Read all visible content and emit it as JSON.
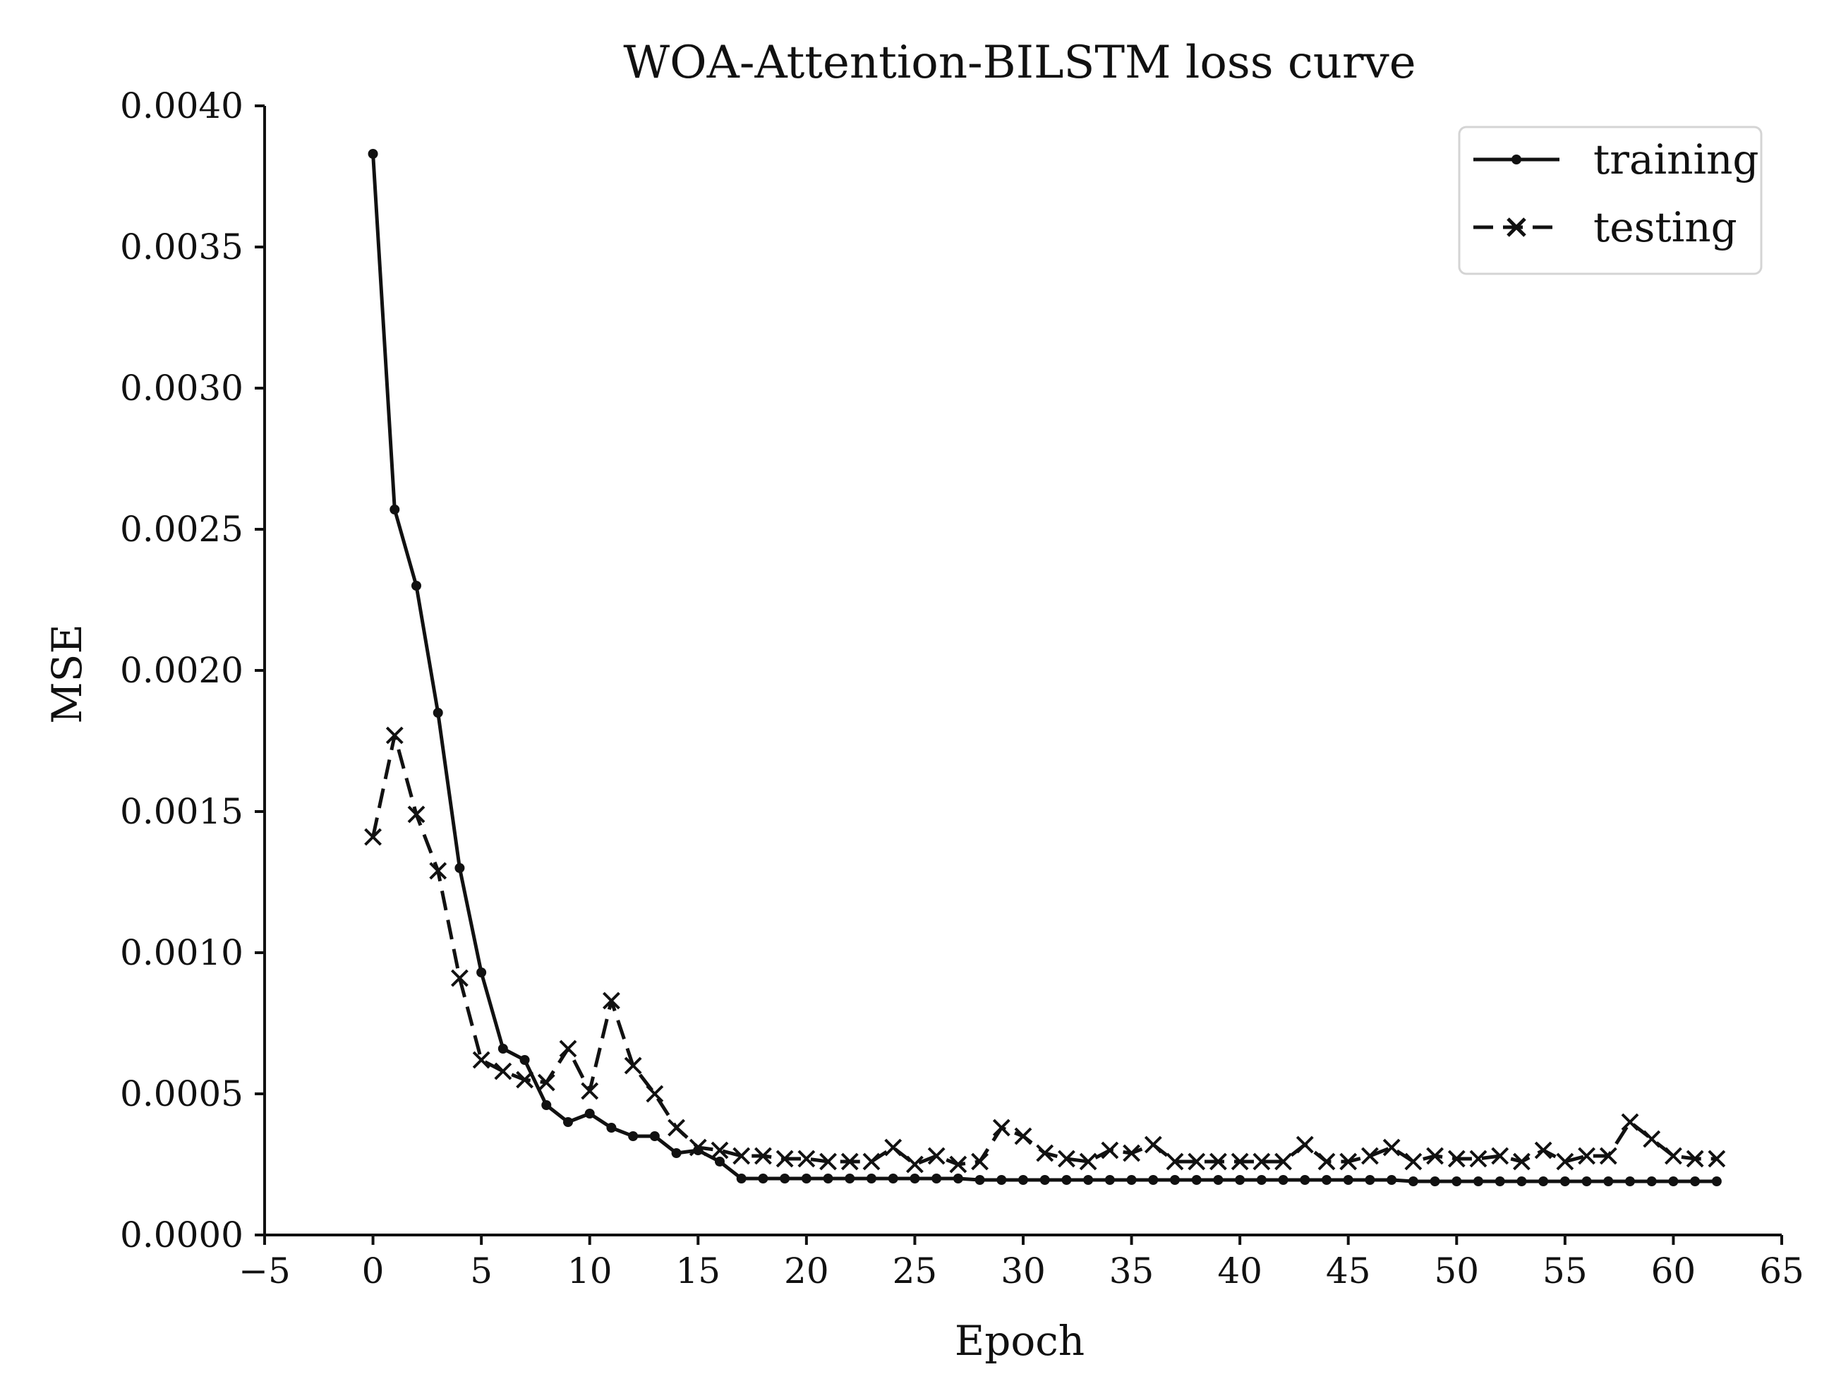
{
  "chart_data": {
    "type": "line",
    "title": "WOA-Attention-BILSTM loss curve",
    "xlabel": "Epoch",
    "ylabel": "MSE",
    "xlim": [
      -5,
      65
    ],
    "ylim": [
      0,
      0.004
    ],
    "x_ticks": [
      -5,
      0,
      5,
      10,
      15,
      20,
      25,
      30,
      35,
      40,
      45,
      50,
      55,
      60,
      65
    ],
    "x_tick_labels": [
      "−5",
      "0",
      "5",
      "10",
      "15",
      "20",
      "25",
      "30",
      "35",
      "40",
      "45",
      "50",
      "55",
      "60",
      "65"
    ],
    "y_ticks": [
      0,
      0.0005,
      0.001,
      0.0015,
      0.002,
      0.0025,
      0.003,
      0.0035,
      0.004
    ],
    "y_tick_labels": [
      "0.0000",
      "0.0005",
      "0.0010",
      "0.0015",
      "0.0020",
      "0.0025",
      "0.0030",
      "0.0035",
      "0.0040"
    ],
    "grid": false,
    "legend_position": "top-right",
    "series": [
      {
        "name": "training",
        "line_style": "solid",
        "marker": "dot",
        "color": "#111111",
        "values": [
          0.00383,
          0.00257,
          0.0023,
          0.00185,
          0.0013,
          0.00093,
          0.00066,
          0.00062,
          0.00046,
          0.0004,
          0.00043,
          0.00038,
          0.00035,
          0.00035,
          0.00029,
          0.0003,
          0.00026,
          0.0002,
          0.0002,
          0.0002,
          0.0002,
          0.0002,
          0.0002,
          0.0002,
          0.0002,
          0.0002,
          0.0002,
          0.0002,
          0.000195,
          0.000195,
          0.000195,
          0.000195,
          0.000195,
          0.000195,
          0.000195,
          0.000195,
          0.000195,
          0.000195,
          0.000195,
          0.000195,
          0.000195,
          0.000195,
          0.000195,
          0.000195,
          0.000195,
          0.000195,
          0.000195,
          0.000195,
          0.00019,
          0.00019,
          0.00019,
          0.00019,
          0.00019,
          0.00019,
          0.00019,
          0.00019,
          0.00019,
          0.00019,
          0.00019,
          0.00019,
          0.00019,
          0.00019,
          0.00019
        ]
      },
      {
        "name": "testing",
        "line_style": "dashed",
        "marker": "x",
        "color": "#111111",
        "values": [
          0.00141,
          0.00177,
          0.00149,
          0.00129,
          0.00091,
          0.00062,
          0.00058,
          0.00055,
          0.00054,
          0.00066,
          0.00051,
          0.00083,
          0.0006,
          0.0005,
          0.00038,
          0.00031,
          0.0003,
          0.00028,
          0.00028,
          0.00027,
          0.00027,
          0.00026,
          0.00026,
          0.00026,
          0.00031,
          0.00025,
          0.00028,
          0.00025,
          0.00026,
          0.00038,
          0.00035,
          0.00029,
          0.00027,
          0.00026,
          0.0003,
          0.00029,
          0.00032,
          0.00026,
          0.00026,
          0.00026,
          0.00026,
          0.00026,
          0.00026,
          0.00032,
          0.00026,
          0.00026,
          0.00028,
          0.00031,
          0.00026,
          0.00028,
          0.00027,
          0.00027,
          0.00028,
          0.00026,
          0.0003,
          0.00026,
          0.00028,
          0.00028,
          0.0004,
          0.00034,
          0.00028,
          0.00027,
          0.00027
        ]
      }
    ]
  }
}
